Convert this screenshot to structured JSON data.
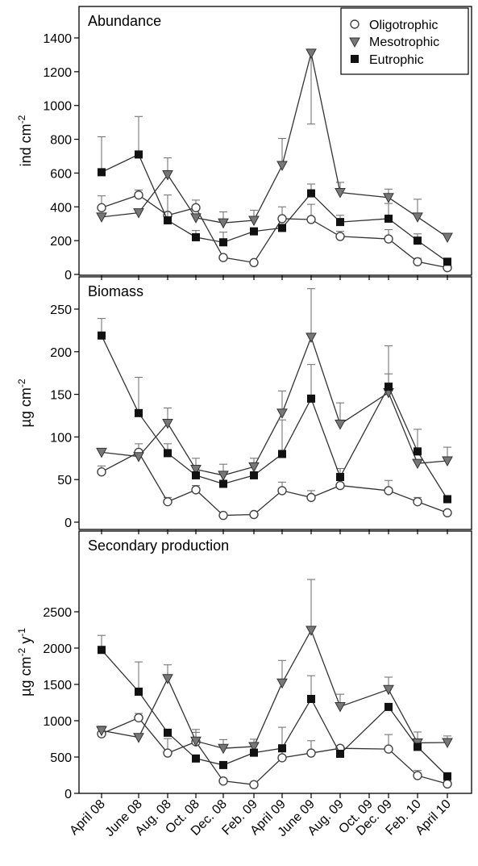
{
  "legend": {
    "items": [
      {
        "name": "Oligotrophic",
        "marker": "circle"
      },
      {
        "name": "Mesotrophic",
        "marker": "triangle-down"
      },
      {
        "name": "Eutrophic",
        "marker": "square"
      }
    ],
    "placement": "top-right"
  },
  "colors": {
    "Oligotrophic": "#ffffff",
    "Mesotrophic": "#777777",
    "Eutrophic": "#111111",
    "line": "#333333",
    "error_bar": "#777777"
  },
  "chart_data": [
    {
      "type": "line",
      "title": "Abundance",
      "ylabel": "ind cm",
      "ylabel_sup": "-2",
      "ylim": [
        0,
        1500
      ],
      "yticks": [
        0,
        200,
        400,
        600,
        800,
        1000,
        1200,
        1400
      ],
      "grid": false,
      "x": [
        "April 08",
        "June 08",
        "Aug. 08",
        "Oct. 08",
        "Dec. 08",
        "Feb. 09",
        "April 09",
        "June 09",
        "Aug. 09",
        "Oct. 09",
        "Dec. 09",
        "Feb. 10",
        "April 10"
      ],
      "series": [
        {
          "name": "Oligotrophic",
          "values": [
            395,
            470,
            350,
            395,
            100,
            70,
            330,
            325,
            225,
            null,
            210,
            75,
            40
          ],
          "err": [
            70,
            30,
            0,
            45,
            0,
            0,
            70,
            90,
            30,
            null,
            55,
            20,
            10
          ]
        },
        {
          "name": "Mesotrophic",
          "values": [
            340,
            365,
            590,
            335,
            305,
            320,
            645,
            1310,
            485,
            null,
            455,
            340,
            220
          ],
          "err": [
            0,
            0,
            100,
            0,
            65,
            60,
            160,
            0,
            60,
            null,
            50,
            105,
            0
          ]
        },
        {
          "name": "Eutrophic",
          "values": [
            605,
            710,
            320,
            220,
            190,
            255,
            275,
            480,
            310,
            null,
            330,
            200,
            75
          ],
          "err": [
            210,
            225,
            150,
            40,
            60,
            0,
            0,
            55,
            40,
            null,
            90,
            40,
            0
          ]
        }
      ],
      "series_errors_lower": {
        "Mesotrophic": [
          0,
          0,
          0,
          0,
          0,
          0,
          0,
          420,
          0,
          null,
          0,
          0,
          0
        ]
      }
    },
    {
      "type": "line",
      "title": "Biomass",
      "ylabel": "µg cm",
      "ylabel_sup": "-2",
      "ylim": [
        0,
        280
      ],
      "yticks": [
        0,
        50,
        100,
        150,
        200,
        250
      ],
      "grid": false,
      "x": [
        "April 08",
        "June 08",
        "Aug. 08",
        "Oct. 08",
        "Dec. 08",
        "Feb. 09",
        "April 09",
        "June 09",
        "Aug. 09",
        "Oct. 09",
        "Dec. 09",
        "Feb. 10",
        "April 10"
      ],
      "series": [
        {
          "name": "Oligotrophic",
          "values": [
            59,
            82,
            24,
            38,
            8,
            9,
            37,
            29,
            43,
            null,
            37,
            24,
            11
          ],
          "err": [
            7,
            10,
            5,
            5,
            0,
            0,
            10,
            8,
            0,
            null,
            12,
            5,
            0
          ]
        },
        {
          "name": "Mesotrophic",
          "values": [
            82,
            77,
            116,
            62,
            55,
            65,
            128,
            217,
            115,
            null,
            152,
            69,
            72
          ],
          "err": [
            0,
            0,
            18,
            13,
            13,
            10,
            26,
            57,
            25,
            null,
            22,
            0,
            16
          ]
        },
        {
          "name": "Eutrophic",
          "values": [
            219,
            128,
            81,
            55,
            45,
            55,
            80,
            145,
            53,
            null,
            159,
            83,
            27
          ],
          "err": [
            20,
            42,
            11,
            0,
            0,
            0,
            40,
            40,
            10,
            null,
            48,
            26,
            0
          ]
        }
      ]
    },
    {
      "type": "line",
      "title": "Secondary production",
      "ylabel": "µg cm",
      "ylabel_sup": "-2",
      "ylabel_mid": " y",
      "ylabel_sup2": "-1",
      "ylim": [
        0,
        2950
      ],
      "yticks": [
        0,
        500,
        1000,
        1500,
        2000,
        2500
      ],
      "grid": false,
      "x": [
        "April 08",
        "June 08",
        "Aug. 08",
        "Oct. 08",
        "Dec. 08",
        "Feb. 09",
        "April 09",
        "June 09",
        "Aug. 09",
        "Oct. 09",
        "Dec. 09",
        "Feb. 10",
        "April 10"
      ],
      "series": [
        {
          "name": "Oligotrophic",
          "values": [
            820,
            1040,
            555,
            710,
            170,
            120,
            490,
            555,
            620,
            null,
            610,
            245,
            130
          ],
          "err": [
            100,
            60,
            200,
            130,
            0,
            0,
            110,
            170,
            0,
            null,
            200,
            70,
            40
          ]
        },
        {
          "name": "Mesotrophic",
          "values": [
            865,
            770,
            1580,
            720,
            620,
            645,
            1520,
            2245,
            1195,
            null,
            1430,
            695,
            700
          ],
          "err": [
            60,
            0,
            190,
            160,
            120,
            100,
            310,
            700,
            170,
            null,
            170,
            150,
            90
          ]
        },
        {
          "name": "Eutrophic",
          "values": [
            1975,
            1400,
            835,
            480,
            390,
            560,
            620,
            1300,
            545,
            null,
            1190,
            640,
            235
          ],
          "err": [
            200,
            410,
            0,
            0,
            0,
            0,
            290,
            320,
            0,
            null,
            0,
            0,
            0
          ]
        }
      ]
    }
  ]
}
